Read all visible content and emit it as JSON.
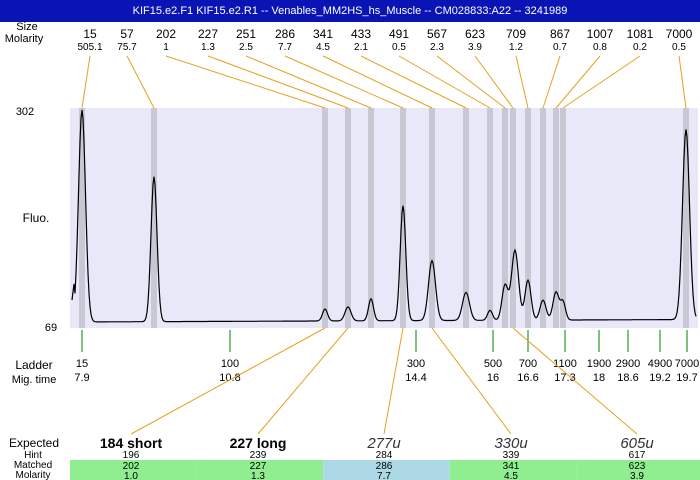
{
  "title": "KIF15.e2.F1  KIF15.e2.R1 -- Venables_MM2HS_hs_Muscle -- CM028833:A22 -- 3241989",
  "left_labels": {
    "size": "Size",
    "molarity": "Molarity",
    "fluo": "Fluo.",
    "ladder": "Ladder",
    "mig_time": "Mig. time",
    "expected": "Expected",
    "hint": "Hint",
    "matched": "Matched",
    "molarity_bottom": "Molarity"
  },
  "chart_data": {
    "type": "line",
    "ylabel": "Fluo.",
    "ylim": [
      69,
      302
    ],
    "y_ticks": [
      "302",
      "69"
    ],
    "peaks": [
      {
        "size": "15",
        "molarity": "505.1"
      },
      {
        "size": "57",
        "molarity": "75.7"
      },
      {
        "size": "202",
        "molarity": "1"
      },
      {
        "size": "227",
        "molarity": "1.3"
      },
      {
        "size": "251",
        "molarity": "2.5"
      },
      {
        "size": "286",
        "molarity": "7.7"
      },
      {
        "size": "341",
        "molarity": "4.5"
      },
      {
        "size": "433",
        "molarity": "2.1"
      },
      {
        "size": "491",
        "molarity": "0.5"
      },
      {
        "size": "567",
        "molarity": "2.3"
      },
      {
        "size": "623",
        "molarity": "3.9"
      },
      {
        "size": "709",
        "molarity": "1.2"
      },
      {
        "size": "867",
        "molarity": "0.7"
      },
      {
        "size": "1007",
        "molarity": "0.8"
      },
      {
        "size": "1081",
        "molarity": "0.2"
      },
      {
        "size": "7000",
        "molarity": "0.5"
      }
    ],
    "ladder": [
      {
        "size": "15",
        "time": "7.9"
      },
      {
        "size": "100",
        "time": "10.8"
      },
      {
        "size": "300",
        "time": "14.4"
      },
      {
        "size": "500",
        "time": "16"
      },
      {
        "size": "700",
        "time": "16.6"
      },
      {
        "size": "1100",
        "time": "17.3"
      },
      {
        "size": "1900",
        "time": "18"
      },
      {
        "size": "2900",
        "time": "18.6"
      },
      {
        "size": "4900",
        "time": "19.2"
      },
      {
        "size": "7000",
        "time": "19.7"
      }
    ],
    "expected": [
      {
        "label": "184 short",
        "hint": "196",
        "matched": "202",
        "molarity": "1.0",
        "style": "bold",
        "color": "#90ee90"
      },
      {
        "label": "227 long",
        "hint": "239",
        "matched": "227",
        "molarity": "1.3",
        "style": "bold",
        "color": "#90ee90"
      },
      {
        "label": "277u",
        "hint": "284",
        "matched": "286",
        "molarity": "7.7",
        "style": "italic",
        "color": "#add8e6"
      },
      {
        "label": "330u",
        "hint": "339",
        "matched": "341",
        "molarity": "4.5",
        "style": "italic",
        "color": "#90ee90"
      },
      {
        "label": "605u",
        "hint": "617",
        "matched": "623",
        "molarity": "3.9",
        "style": "italic",
        "color": "#90ee90"
      }
    ],
    "colors": {
      "plot_bg": "#e8e8f8",
      "band": "#c8c8d4",
      "connector": "#e8a020",
      "ladder_tick": "#008000",
      "trace": "#000000",
      "title_bg": "#0a14b4"
    }
  }
}
